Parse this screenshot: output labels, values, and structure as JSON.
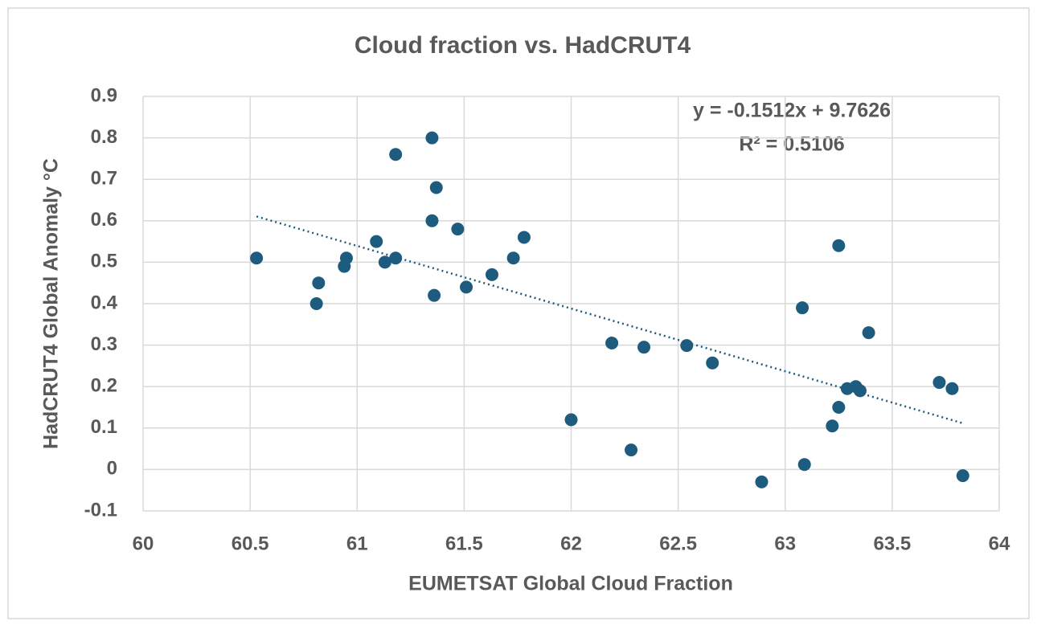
{
  "chart_data": {
    "type": "scatter",
    "title": "Cloud fraction vs. HadCRUT4",
    "x_label": "EUMETSAT Global Cloud Fraction",
    "y_label": "HadCRUT4 Global Anomaly °C",
    "color": "#1d5c7e",
    "grid": true,
    "xlim": [
      60,
      64
    ],
    "xticks": [
      60,
      60.5,
      61,
      61.5,
      62,
      62.5,
      63,
      63.5,
      64
    ],
    "ylim": [
      -0.1,
      0.9
    ],
    "yticks": [
      -0.1,
      0,
      0.1,
      0.2,
      0.3,
      0.4,
      0.5,
      0.6,
      0.7,
      0.8,
      0.9
    ],
    "x": [
      60.53,
      60.82,
      60.81,
      60.94,
      60.95,
      61.09,
      61.13,
      61.18,
      61.18,
      61.35,
      61.37,
      61.35,
      61.36,
      61.47,
      61.51,
      61.63,
      61.73,
      61.78,
      62.0,
      62.19,
      62.28,
      62.34,
      62.54,
      62.66,
      62.89,
      63.08,
      63.09,
      63.22,
      63.25,
      63.25,
      63.29,
      63.33,
      63.35,
      63.39,
      63.72,
      63.78,
      63.83
    ],
    "values": [
      0.51,
      0.45,
      0.4,
      0.49,
      0.51,
      0.55,
      0.5,
      0.51,
      0.76,
      0.8,
      0.68,
      0.6,
      0.42,
      0.58,
      0.44,
      0.47,
      0.51,
      0.56,
      0.12,
      0.305,
      0.047,
      0.295,
      0.299,
      0.257,
      -0.03,
      0.39,
      0.012,
      0.105,
      0.54,
      0.15,
      0.195,
      0.2,
      0.19,
      0.33,
      0.21,
      0.195,
      -0.015
    ],
    "trendline": {
      "equation": "y = -0.1512x + 9.7626",
      "r_squared": "R² = 0.5106",
      "slope": -0.1512,
      "intercept": 9.7626
    }
  }
}
